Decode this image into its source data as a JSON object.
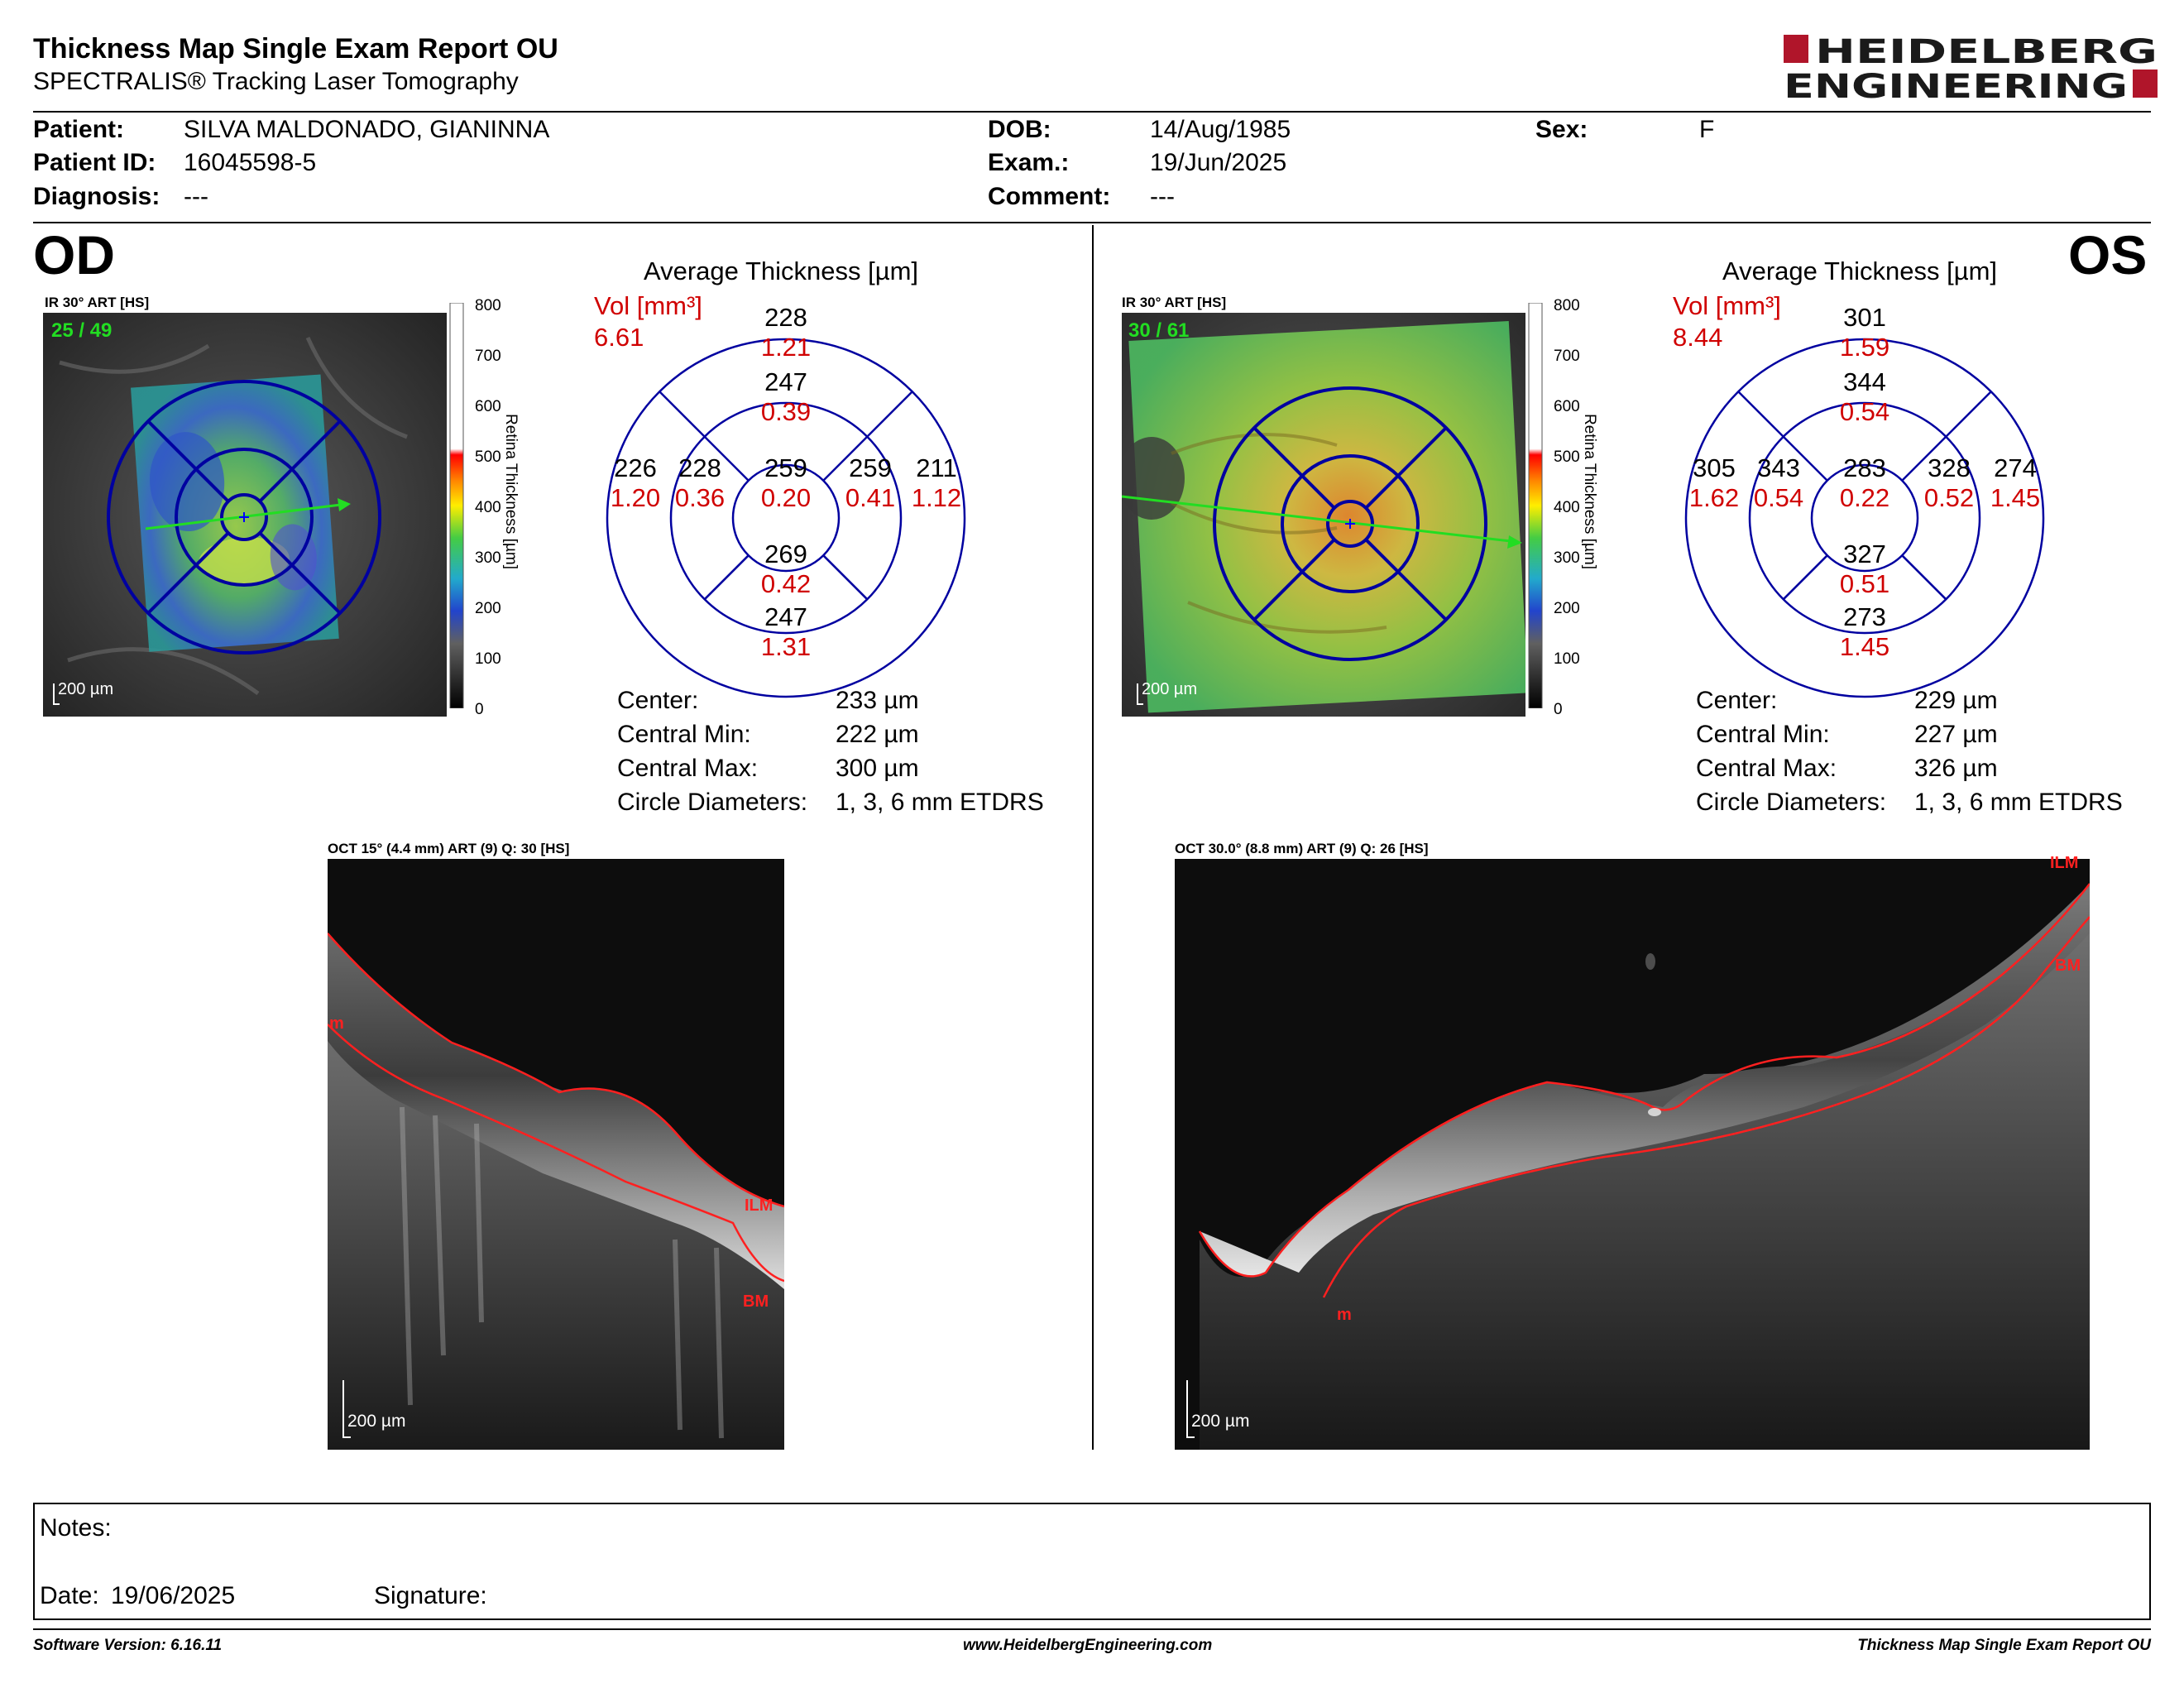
{
  "report": {
    "title": "Thickness Map Single Exam Report OU",
    "subtitle": "SPECTRALIS® Tracking Laser Tomography",
    "logo_line1": "HEIDELBERG",
    "logo_line2": "ENGINEERING"
  },
  "patient": {
    "patient_label": "Patient:",
    "patient_value": "SILVA MALDONADO, GIANINNA",
    "id_label": "Patient ID:",
    "id_value": "16045598-5",
    "diagnosis_label": "Diagnosis:",
    "diagnosis_value": "---",
    "dob_label": "DOB:",
    "dob_value": "14/Aug/1985",
    "exam_label": "Exam.:",
    "exam_value": "19/Jun/2025",
    "comment_label": "Comment:",
    "comment_value": "---",
    "sex_label": "Sex:",
    "sex_value": "F"
  },
  "od": {
    "eye_label": "OD",
    "ir_label": "IR 30° ART [HS]",
    "frames": "25 / 49",
    "scale": "200 µm",
    "avg_title": "Average Thickness [µm]",
    "vol_label": "Vol [mm³]",
    "vol_total": "6.61",
    "grid": {
      "center": {
        "t": "259",
        "v": "0.20"
      },
      "inner_sup": {
        "t": "247",
        "v": "0.39"
      },
      "inner_inf": {
        "t": "269",
        "v": "0.42"
      },
      "inner_left": {
        "t": "228",
        "v": "0.36"
      },
      "inner_right": {
        "t": "259",
        "v": "0.41"
      },
      "outer_sup": {
        "t": "228",
        "v": "1.21"
      },
      "outer_inf": {
        "t": "247",
        "v": "1.31"
      },
      "outer_left": {
        "t": "226",
        "v": "1.20"
      },
      "outer_right": {
        "t": "211",
        "v": "1.12"
      }
    },
    "stats": {
      "center_label": "Center:",
      "center_value": "233 µm",
      "min_label": "Central Min:",
      "min_value": "222 µm",
      "max_label": "Central Max:",
      "max_value": "300 µm",
      "diam_label": "Circle Diameters:",
      "diam_value": "1, 3, 6 mm ETDRS"
    },
    "oct_label": "OCT 15° (4.4 mm) ART (9) Q: 30 [HS]",
    "oct_scale": "200 µm",
    "layer_ilm": "ILM",
    "layer_bm": "BM",
    "layer_m": "m"
  },
  "os": {
    "eye_label": "OS",
    "ir_label": "IR 30° ART [HS]",
    "frames": "30 / 61",
    "scale": "200 µm",
    "avg_title": "Average Thickness [µm]",
    "vol_label": "Vol [mm³]",
    "vol_total": "8.44",
    "grid": {
      "center": {
        "t": "283",
        "v": "0.22"
      },
      "inner_sup": {
        "t": "344",
        "v": "0.54"
      },
      "inner_inf": {
        "t": "327",
        "v": "0.51"
      },
      "inner_left": {
        "t": "343",
        "v": "0.54"
      },
      "inner_right": {
        "t": "328",
        "v": "0.52"
      },
      "outer_sup": {
        "t": "301",
        "v": "1.59"
      },
      "outer_inf": {
        "t": "273",
        "v": "1.45"
      },
      "outer_left": {
        "t": "305",
        "v": "1.62"
      },
      "outer_right": {
        "t": "274",
        "v": "1.45"
      }
    },
    "stats": {
      "center_label": "Center:",
      "center_value": "229 µm",
      "min_label": "Central Min:",
      "min_value": "227 µm",
      "max_label": "Central Max:",
      "max_value": "326 µm",
      "diam_label": "Circle Diameters:",
      "diam_value": "1, 3, 6 mm ETDRS"
    },
    "oct_label": "OCT 30.0° (8.8 mm) ART (9) Q: 26 [HS]",
    "oct_scale": "200 µm",
    "layer_ilm": "ILM",
    "layer_bm": "BM",
    "layer_m": "m"
  },
  "colorbar": {
    "ticks": [
      "800",
      "700",
      "600",
      "500",
      "400",
      "300",
      "200",
      "100",
      "0"
    ],
    "label": "Retina  Thickness [µm]"
  },
  "notes": {
    "notes_label": "Notes:",
    "date_label": "Date:",
    "date_value": "19/06/2025",
    "signature_label": "Signature:"
  },
  "footer": {
    "software": "Software Version: 6.16.11",
    "website": "www.HeidelbergEngineering.com",
    "report_name": "Thickness Map Single Exam Report OU"
  },
  "colors": {
    "grid_blue": "#0000a0",
    "vol_red": "#d00000",
    "logo_red": "#b0152a",
    "frame_green": "#22dd22"
  }
}
